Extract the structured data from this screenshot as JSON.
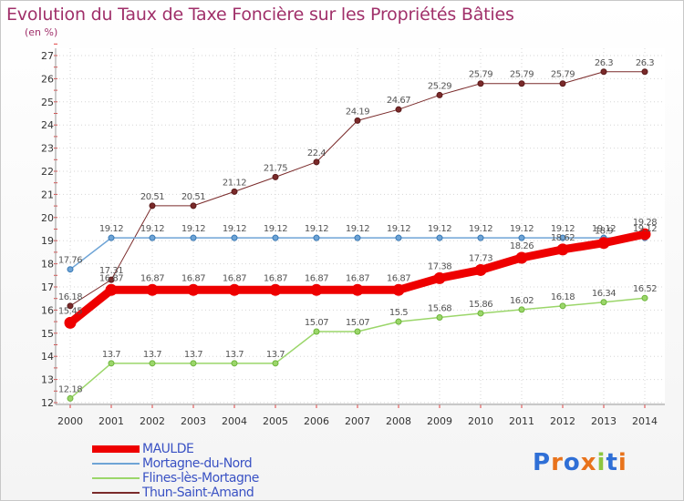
{
  "title": "Evolution du Taux de Taxe Foncière sur les Propriétés Bâties",
  "subtitle": "(en %)",
  "logo": {
    "text": "Proxiti",
    "colors": [
      "#2f6fd6",
      "#e8731c",
      "#2f6fd6",
      "#e8731c",
      "#8cc63f",
      "#2f6fd6",
      "#e8731c"
    ]
  },
  "legend": [
    {
      "name": "MAULDE",
      "color": "#ee0000"
    },
    {
      "name": "Mortagne-du-Nord",
      "color": "#6ea4d6"
    },
    {
      "name": "Flines-lès-Mortagne",
      "color": "#9bd66a"
    },
    {
      "name": "Thun-Saint-Amand",
      "color": "#7a2a2a"
    }
  ],
  "chart_data": {
    "type": "line",
    "title": "Evolution du Taux de Taxe Foncière sur les Propriétés Bâties",
    "ylabel": "(en %)",
    "xlabel": "",
    "x": [
      "2000",
      "2001",
      "2002",
      "2003",
      "2004",
      "2005",
      "2006",
      "2007",
      "2008",
      "2009",
      "2010",
      "2011",
      "2012",
      "2013",
      "2014"
    ],
    "ylim": [
      12,
      27
    ],
    "yticks": [
      12,
      13,
      14,
      15,
      16,
      17,
      18,
      19,
      20,
      21,
      22,
      23,
      24,
      25,
      26,
      27
    ],
    "series": [
      {
        "name": "Thun-Saint-Amand",
        "color": "#7a2a2a",
        "marker": "#5a1a1a",
        "width": 1,
        "radius": 3,
        "values": [
          16.18,
          17.31,
          20.51,
          20.51,
          21.12,
          21.75,
          22.4,
          24.19,
          24.67,
          25.29,
          25.79,
          25.79,
          25.79,
          26.3,
          26.3
        ],
        "labels": [
          "16.18",
          "17.31",
          "20.51",
          "20.51",
          "21.12",
          "21.75",
          "22.4",
          "24.19",
          "24.67",
          "25.29",
          "25.79",
          "25.79",
          "25.79",
          "26.3",
          "26.3"
        ]
      },
      {
        "name": "Mortagne-du-Nord",
        "color": "#6ea4d6",
        "marker": "#3a7ab6",
        "width": 1.5,
        "radius": 3,
        "values": [
          17.76,
          19.12,
          19.12,
          19.12,
          19.12,
          19.12,
          19.12,
          19.12,
          19.12,
          19.12,
          19.12,
          19.12,
          19.12,
          19.12,
          19.12
        ],
        "labels": [
          "17.76",
          "19.12",
          "19.12",
          "19.12",
          "19.12",
          "19.12",
          "19.12",
          "19.12",
          "19.12",
          "19.12",
          "19.12",
          "19.12",
          "19.12",
          "19.12",
          "19.12"
        ]
      },
      {
        "name": "Flines-lès-Mortagne",
        "color": "#9bd66a",
        "marker": "#6cb43a",
        "width": 1.5,
        "radius": 3,
        "values": [
          12.18,
          13.7,
          13.7,
          13.7,
          13.7,
          13.7,
          15.07,
          15.07,
          15.5,
          15.68,
          15.86,
          16.02,
          16.18,
          16.34,
          16.52
        ],
        "labels": [
          "12.18",
          "13.7",
          "13.7",
          "13.7",
          "13.7",
          "13.7",
          "15.07",
          "15.07",
          "15.5",
          "15.68",
          "15.86",
          "16.02",
          "16.18",
          "16.34",
          "16.52"
        ]
      },
      {
        "name": "MAULDE",
        "color": "#ee0000",
        "marker": "#ee0000",
        "width": 9,
        "radius": 6,
        "values": [
          15.45,
          16.87,
          16.87,
          16.87,
          16.87,
          16.87,
          16.87,
          16.87,
          16.87,
          17.38,
          17.73,
          18.26,
          18.62,
          18.9,
          19.28
        ],
        "labels": [
          "15.45",
          "16.87",
          "16.87",
          "16.87",
          "16.87",
          "16.87",
          "16.87",
          "16.87",
          "16.87",
          "17.38",
          "17.73",
          "18.26",
          "18.62",
          "18.9",
          "19.28"
        ]
      }
    ]
  }
}
